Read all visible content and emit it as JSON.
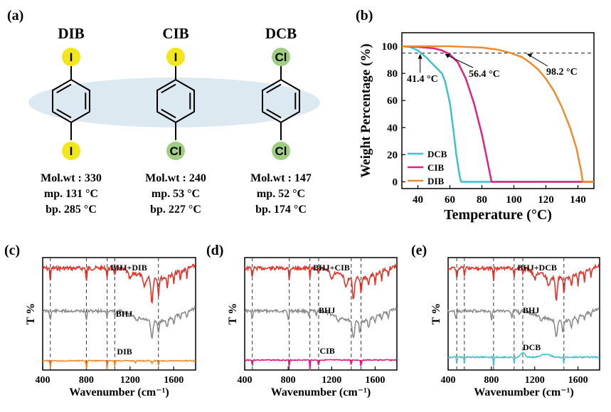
{
  "panels": {
    "a": {
      "label": "(a)",
      "molecules": [
        {
          "name": "DIB",
          "top": "I",
          "bottom": "I",
          "top_color": "#f2e61c",
          "bottom_color": "#f2e61c",
          "molwt": "Mol.wt : 330",
          "mp": "mp. 131 °C",
          "bp": "bp. 285 °C"
        },
        {
          "name": "CIB",
          "top": "I",
          "bottom": "Cl",
          "top_color": "#f2e61c",
          "bottom_color": "#9fce83",
          "molwt": "Mol.wt : 240",
          "mp": "mp. 53 °C",
          "bp": "bp. 227 °C"
        },
        {
          "name": "DCB",
          "top": "Cl",
          "bottom": "Cl",
          "top_color": "#9fce83",
          "bottom_color": "#9fce83",
          "molwt": "Mol.wt : 147",
          "mp": "mp. 52 °C",
          "bp": "bp. 174 °C"
        }
      ]
    },
    "b": {
      "label": "(b)"
    },
    "c": {
      "label": "(c)"
    },
    "d": {
      "label": "(d)"
    },
    "e": {
      "label": "(e)"
    }
  },
  "chart_data": [
    {
      "id": "b",
      "type": "line",
      "xlabel": "Temperature (°C)",
      "ylabel": "Weight Percentage (%)",
      "xlim": [
        30,
        150
      ],
      "ylim": [
        -5,
        110
      ],
      "xticks": [
        40,
        60,
        80,
        100,
        120,
        140
      ],
      "yticks": [
        0,
        20,
        40,
        60,
        80,
        100
      ],
      "reference_line_y": 95,
      "series": [
        {
          "name": "DCB",
          "color": "#3ec1c9",
          "points": [
            [
              30,
              100
            ],
            [
              35,
              99.5
            ],
            [
              40,
              97
            ],
            [
              45,
              92
            ],
            [
              50,
              86
            ],
            [
              55,
              80
            ],
            [
              57,
              74
            ],
            [
              60,
              58
            ],
            [
              62,
              40
            ],
            [
              64,
              20
            ],
            [
              66,
              5
            ],
            [
              67,
              0
            ],
            [
              150,
              0
            ]
          ]
        },
        {
          "name": "CIB",
          "color": "#e0217f",
          "points": [
            [
              30,
              100
            ],
            [
              40,
              99.5
            ],
            [
              50,
              98.5
            ],
            [
              55,
              97
            ],
            [
              60,
              94
            ],
            [
              65,
              88
            ],
            [
              70,
              76
            ],
            [
              75,
              58
            ],
            [
              80,
              35
            ],
            [
              84,
              12
            ],
            [
              86,
              0
            ],
            [
              150,
              0
            ]
          ]
        },
        {
          "name": "DIB",
          "color": "#f08a2c",
          "points": [
            [
              30,
              100
            ],
            [
              60,
              100
            ],
            [
              80,
              99
            ],
            [
              90,
              97.5
            ],
            [
              98,
              95
            ],
            [
              105,
              92
            ],
            [
              110,
              88
            ],
            [
              115,
              83
            ],
            [
              120,
              76
            ],
            [
              125,
              67
            ],
            [
              130,
              55
            ],
            [
              135,
              40
            ],
            [
              139,
              25
            ],
            [
              142,
              8
            ],
            [
              143,
              0
            ],
            [
              150,
              0
            ]
          ]
        }
      ],
      "annotations": [
        {
          "text": "41.4 °C",
          "x": 41.4
        },
        {
          "text": "56.4 °C",
          "x": 56.4
        },
        {
          "text": "98.2 °C",
          "x": 98.2
        }
      ]
    },
    {
      "id": "c",
      "type": "line",
      "xlabel": "Wavenumber (cm⁻¹)",
      "ylabel": "T %",
      "xlim": [
        400,
        1800
      ],
      "xticks": [
        400,
        800,
        1200,
        1600
      ],
      "series": [
        {
          "name": "BHJ+DIB",
          "color": "#e3342b"
        },
        {
          "name": "BHJ",
          "color": "#8c8c8c"
        },
        {
          "name": "DIB",
          "color": "#f08a2c"
        }
      ],
      "dashed_x": [
        470,
        800,
        990,
        1060,
        1460
      ]
    },
    {
      "id": "d",
      "type": "line",
      "xlabel": "Wavenumber (cm⁻¹)",
      "ylabel": "T %",
      "xlim": [
        400,
        1800
      ],
      "xticks": [
        400,
        800,
        1200,
        1600
      ],
      "series": [
        {
          "name": "BHJ+CIB",
          "color": "#e3342b"
        },
        {
          "name": "BHJ",
          "color": "#8c8c8c"
        },
        {
          "name": "CIB",
          "color": "#e0217f"
        }
      ],
      "dashed_x": [
        470,
        810,
        1000,
        1080,
        1380,
        1470
      ]
    },
    {
      "id": "e",
      "type": "line",
      "xlabel": "Wavenumber (cm⁻¹)",
      "ylabel": "T %",
      "xlim": [
        400,
        1800
      ],
      "xticks": [
        400,
        800,
        1200,
        1600
      ],
      "series": [
        {
          "name": "BHJ+DCB",
          "color": "#e3342b"
        },
        {
          "name": "BHJ",
          "color": "#8c8c8c"
        },
        {
          "name": "DCB",
          "color": "#3ec1c9"
        }
      ],
      "dashed_x": [
        480,
        550,
        820,
        1010,
        1090,
        1470
      ]
    }
  ]
}
